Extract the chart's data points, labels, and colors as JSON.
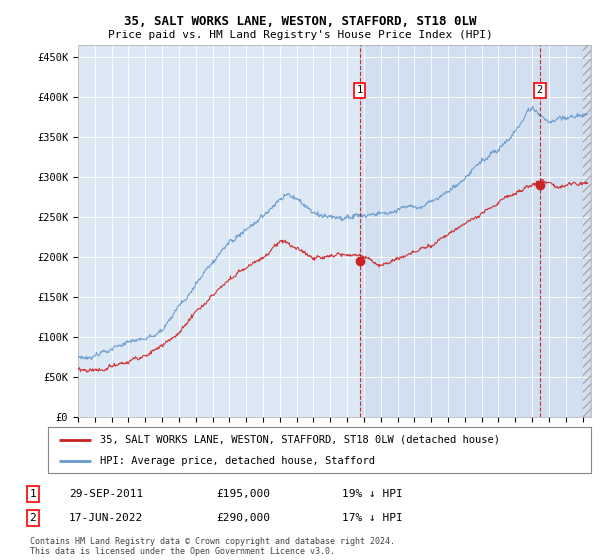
{
  "title1": "35, SALT WORKS LANE, WESTON, STAFFORD, ST18 0LW",
  "title2": "Price paid vs. HM Land Registry's House Price Index (HPI)",
  "ylabel_ticks": [
    "£0",
    "£50K",
    "£100K",
    "£150K",
    "£200K",
    "£250K",
    "£300K",
    "£350K",
    "£400K",
    "£450K"
  ],
  "ytick_values": [
    0,
    50000,
    100000,
    150000,
    200000,
    250000,
    300000,
    350000,
    400000,
    450000
  ],
  "xlim_start": 1995.0,
  "xlim_end": 2025.5,
  "ylim_min": 0,
  "ylim_max": 465000,
  "hpi_color": "#6699cc",
  "price_color": "#cc2222",
  "marker1_date": 2011.75,
  "marker1_price": 195000,
  "marker2_date": 2022.46,
  "marker2_price": 290000,
  "legend_line1": "35, SALT WORKS LANE, WESTON, STAFFORD, ST18 0LW (detached house)",
  "legend_line2": "HPI: Average price, detached house, Stafford",
  "footnote_line1": "Contains HM Land Registry data © Crown copyright and database right 2024.",
  "footnote_line2": "This data is licensed under the Open Government Licence v3.0.",
  "annotation1_date": "29-SEP-2011",
  "annotation1_price": "£195,000",
  "annotation1_hpi": "19% ↓ HPI",
  "annotation2_date": "17-JUN-2022",
  "annotation2_price": "£290,000",
  "annotation2_hpi": "17% ↓ HPI",
  "plot_bg_color": "#dde8f5",
  "shade_color": "#ccdaee"
}
